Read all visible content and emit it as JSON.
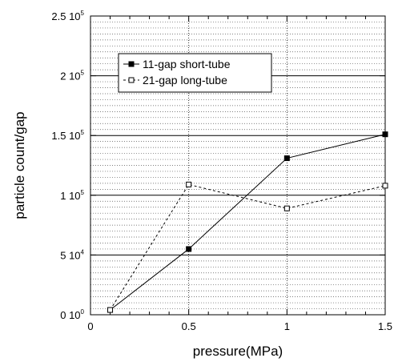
{
  "chart_data": {
    "type": "line",
    "xlabel": "pressure(MPa)",
    "ylabel": "particle count/gap",
    "xlim": [
      0,
      1.5
    ],
    "ylim": [
      0,
      250000
    ],
    "x_ticks": [
      {
        "value": 0,
        "label": "0"
      },
      {
        "value": 0.5,
        "label": "0.5"
      },
      {
        "value": 1,
        "label": "1"
      },
      {
        "value": 1.5,
        "label": "1.5"
      }
    ],
    "y_ticks": [
      {
        "value": 0,
        "mantissa": "0",
        "base": "10",
        "exponent": "0"
      },
      {
        "value": 50000,
        "mantissa": "5",
        "base": "10",
        "exponent": "4"
      },
      {
        "value": 100000,
        "mantissa": "1",
        "base": "10",
        "exponent": "5"
      },
      {
        "value": 150000,
        "mantissa": "1.5",
        "base": "10",
        "exponent": "5"
      },
      {
        "value": 200000,
        "mantissa": "2",
        "base": "10",
        "exponent": "5"
      },
      {
        "value": 250000,
        "mantissa": "2.5",
        "base": "10",
        "exponent": "5"
      }
    ],
    "grid": true,
    "legend_position": "top-left",
    "series": [
      {
        "name": "11-gap short-tube",
        "marker": "filled-square",
        "line_style": "solid",
        "x": [
          0.1,
          0.5,
          1,
          1.5
        ],
        "y": [
          4000,
          55000,
          131000,
          151000
        ]
      },
      {
        "name": "21-gap long-tube",
        "marker": "open-square",
        "line_style": "dashed",
        "x": [
          0.1,
          0.5,
          1,
          1.5
        ],
        "y": [
          4000,
          109000,
          89000,
          108000
        ]
      }
    ]
  }
}
